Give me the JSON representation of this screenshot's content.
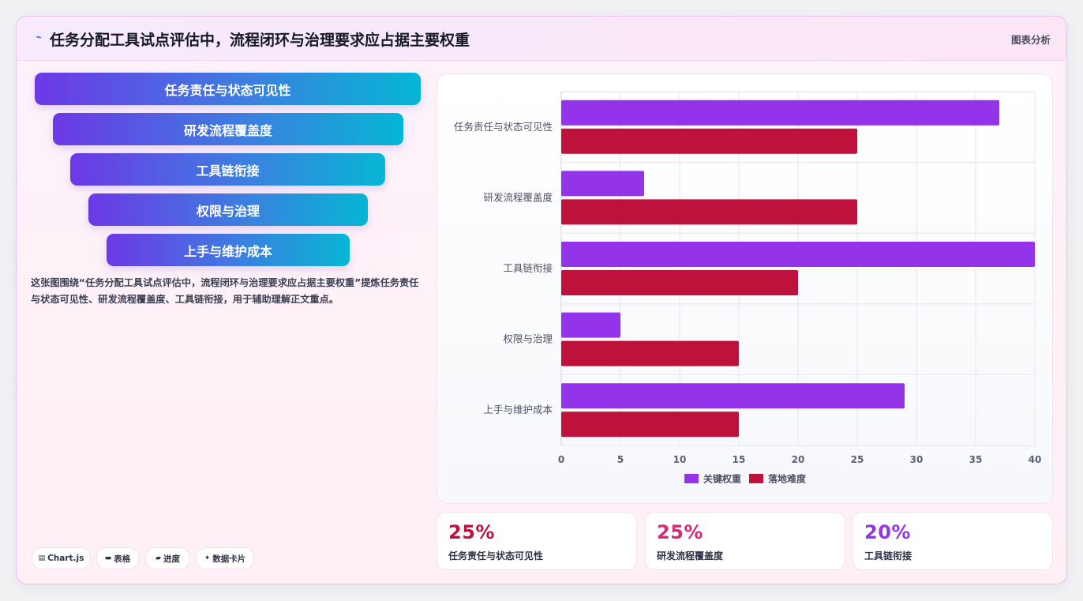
{
  "header": {
    "icon": "chart-line-icon",
    "title": "任务分配工具试点评估中，流程闭环与治理要求应占据主要权重",
    "tag": "图表分析"
  },
  "funnel": {
    "items": [
      {
        "label": "任务责任与状态可见性"
      },
      {
        "label": "研发流程覆盖度"
      },
      {
        "label": "工具链衔接"
      },
      {
        "label": "权限与治理"
      },
      {
        "label": "上手与维护成本"
      }
    ]
  },
  "description": "这张图围绕“任务分配工具试点评估中，流程闭环与治理要求应占据主要权重”提炼任务责任与状态可见性、研发流程覆盖度、工具链衔接，用于辅助理解正文重点。",
  "pills": [
    {
      "icon": "chart-icon",
      "label": "Chart.js"
    },
    {
      "icon": "table-icon",
      "label": "表格"
    },
    {
      "icon": "progress-icon",
      "label": "进度"
    },
    {
      "icon": "sparkle-icon",
      "label": "数据卡片"
    }
  ],
  "stats": [
    {
      "value": "25%",
      "label": "任务责任与状态可见性",
      "color": "#be123c"
    },
    {
      "value": "25%",
      "label": "研发流程覆盖度",
      "color": "#db2777"
    },
    {
      "value": "20%",
      "label": "工具链衔接",
      "color": "#9333ea"
    }
  ],
  "chart_data": {
    "type": "bar",
    "orientation": "horizontal",
    "categories": [
      "任务责任与状态可见性",
      "研发流程覆盖度",
      "工具链衔接",
      "权限与治理",
      "上手与维护成本"
    ],
    "series": [
      {
        "name": "关键权重",
        "values": [
          37,
          7,
          40,
          5,
          29
        ],
        "color": "#9333ea"
      },
      {
        "name": "落地难度",
        "values": [
          25,
          25,
          20,
          15,
          15
        ],
        "color": "#be123c"
      }
    ],
    "xlim": [
      0,
      40
    ],
    "xticks": [
      0,
      5,
      10,
      15,
      20,
      25,
      30,
      35,
      40
    ],
    "grid": true,
    "legend": "bottom"
  }
}
